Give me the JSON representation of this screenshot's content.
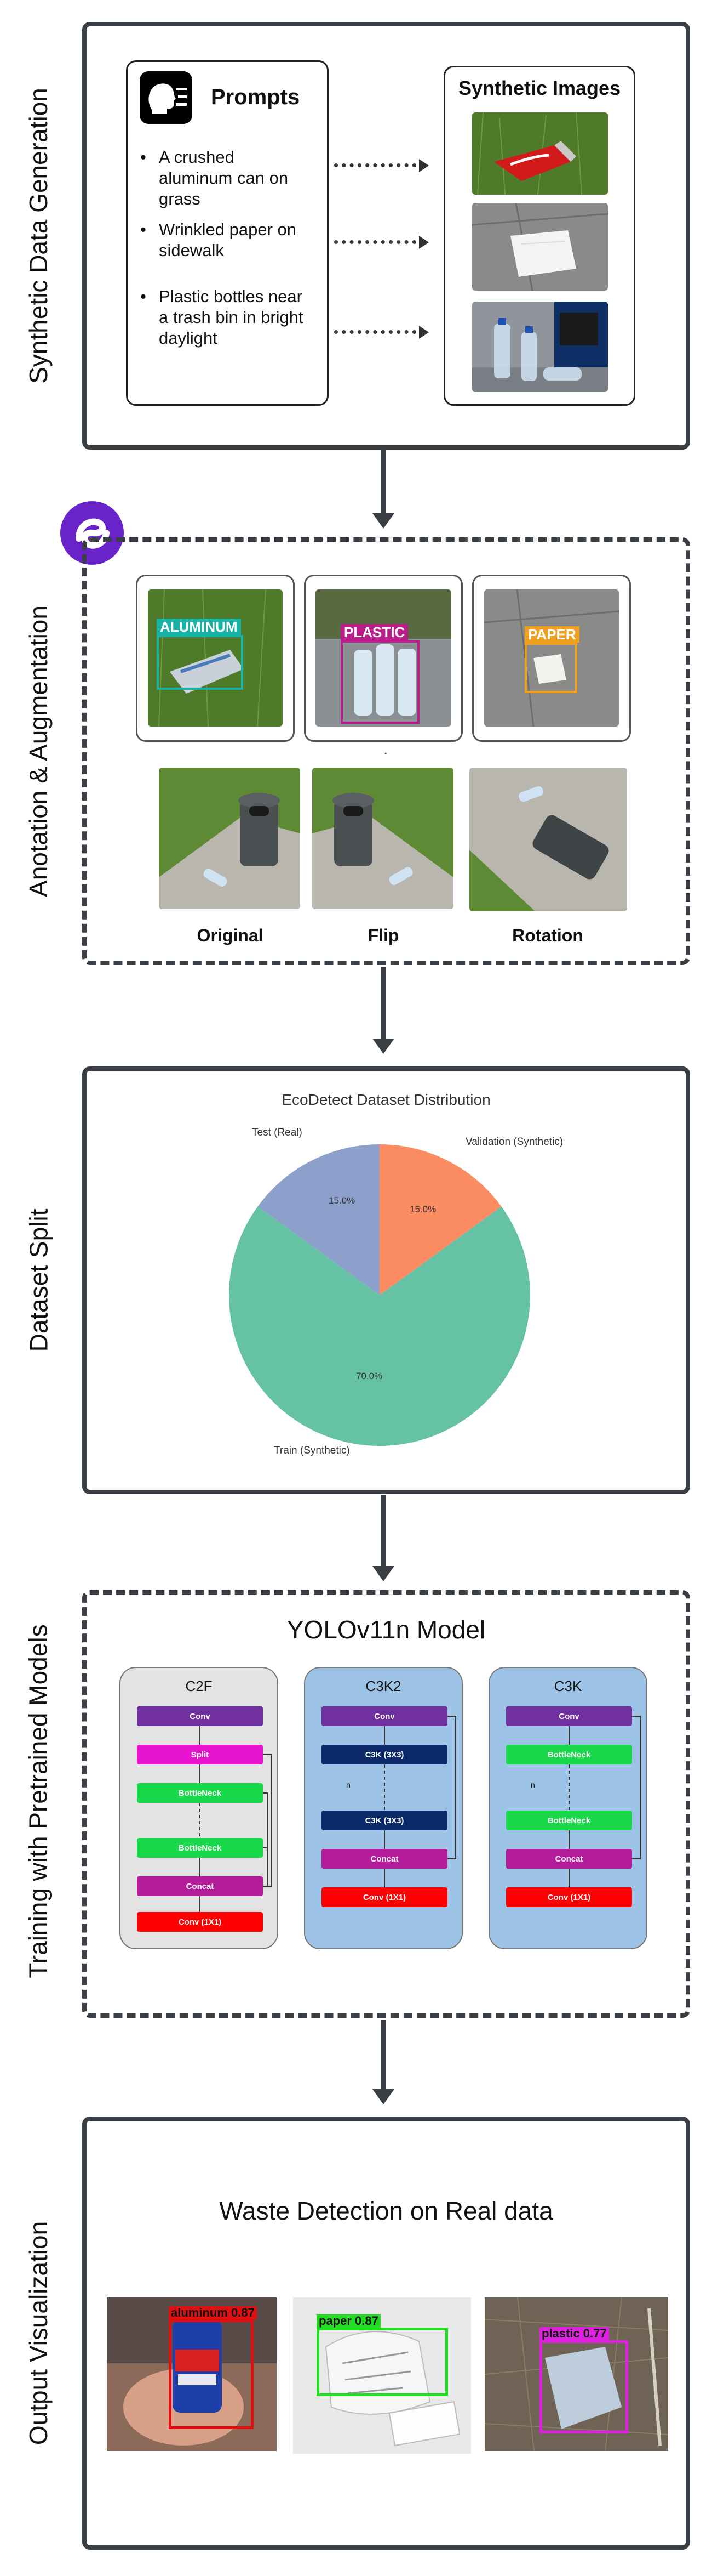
{
  "stages": {
    "s1": "Synthetic Data Generation",
    "s2": "Anotation & Augmentation",
    "s3": "Dataset Split",
    "s4": "Training with Pretrained Models",
    "s5": "Output Visualization"
  },
  "generation": {
    "prompts_title": "Prompts",
    "prompts": [
      "A crushed aluminum can on grass",
      "Wrinkled paper on sidewalk",
      "Plastic bottles near a trash bin in bright daylight"
    ],
    "images_title": "Synthetic Images",
    "image_icons": [
      "crushed-can-image",
      "paper-on-sidewalk-image",
      "bottles-near-bin-image"
    ]
  },
  "annotation": {
    "labels": [
      "ALUMINUM",
      "PLASTIC",
      "PAPER"
    ],
    "colors": {
      "aluminum": "#19b3a6",
      "plastic": "#b81d8a",
      "paper": "#f0a020"
    },
    "augment_captions": [
      "Original",
      "Flip",
      "Rotation"
    ],
    "dot": "."
  },
  "chart_data": {
    "type": "pie",
    "title": "EcoDetect Dataset Distribution",
    "labels": [
      "Train (Synthetic)",
      "Validation (Synthetic)",
      "Test (Real)"
    ],
    "values": [
      70.0,
      15.0,
      15.0
    ],
    "pct_labels": [
      "70.0%",
      "15.0%",
      "15.0%"
    ],
    "colors": [
      "#66c2a5",
      "#fc8d62",
      "#8da0cb"
    ],
    "start_angle": 90
  },
  "model": {
    "title": "YOLOv11n Model",
    "blocks": [
      {
        "name": "C2F",
        "bg": "#e3e3e3",
        "nodes": [
          {
            "label": "Conv",
            "color": "#7030a0"
          },
          {
            "label": "Split",
            "color": "#e815d0"
          },
          {
            "label": "BottleNeck",
            "color": "#19d84a"
          },
          {
            "label": "BottleNeck",
            "color": "#19d84a"
          },
          {
            "label": "Concat",
            "color": "#b31d9a"
          },
          {
            "label": "Conv (1X1)",
            "color": "#ff0000"
          }
        ]
      },
      {
        "name": "C3K2",
        "bg": "#9dc3e6",
        "nodes": [
          {
            "label": "Conv",
            "color": "#7030a0"
          },
          {
            "label": "C3K (3X3)",
            "color": "#0c2a6a"
          },
          {
            "label": "C3K (3X3)",
            "color": "#0c2a6a"
          },
          {
            "label": "Concat",
            "color": "#b31d9a"
          },
          {
            "label": "Conv (1X1)",
            "color": "#ff0000"
          }
        ]
      },
      {
        "name": "C3K",
        "bg": "#9dc3e6",
        "nodes": [
          {
            "label": "Conv",
            "color": "#7030a0"
          },
          {
            "label": "BottleNeck",
            "color": "#19d84a"
          },
          {
            "label": "BottleNeck",
            "color": "#19d84a"
          },
          {
            "label": "Concat",
            "color": "#b31d9a"
          },
          {
            "label": "Conv (1X1)",
            "color": "#ff0000"
          }
        ]
      }
    ],
    "n_label": "n"
  },
  "output": {
    "title": "Waste Detection on Real data",
    "detections": [
      {
        "tag": "aluminum 0.87",
        "color": "#e01010"
      },
      {
        "tag": "paper 0.87",
        "color": "#22dd22"
      },
      {
        "tag": "plastic 0.77",
        "color": "#e020e0"
      }
    ]
  }
}
